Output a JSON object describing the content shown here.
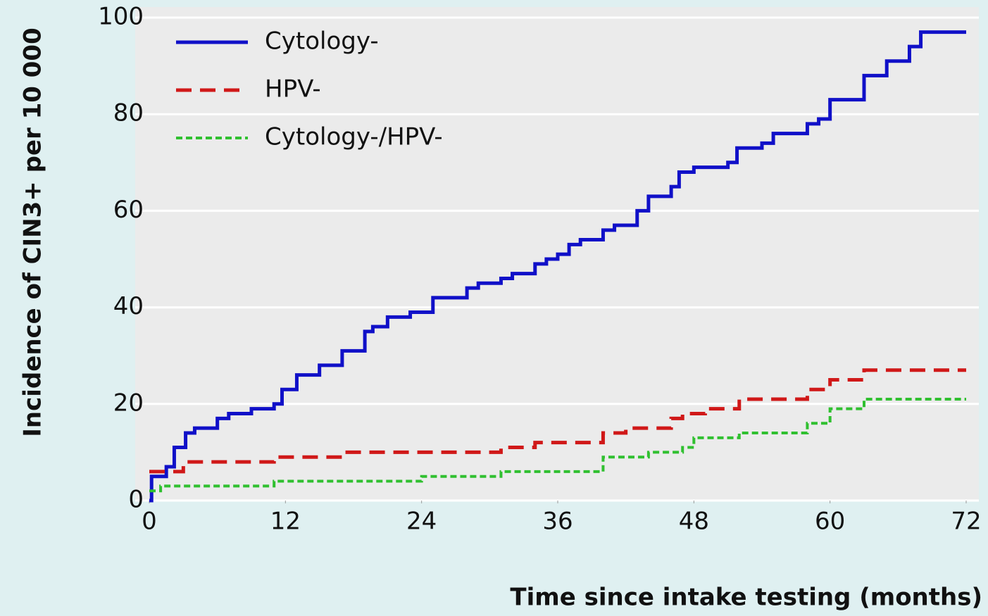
{
  "chart_data": {
    "type": "line",
    "step": "post",
    "xlabel": "Time since intake testing (months)",
    "ylabel": "Incidence of CIN3+ per 10 000",
    "xlim": [
      0,
      72
    ],
    "xticks": [
      0,
      12,
      24,
      36,
      48,
      60,
      72
    ],
    "ylim": [
      0,
      100
    ],
    "yticks": [
      0,
      20,
      40,
      60,
      80,
      100
    ],
    "grid": true,
    "legend": "upper left",
    "series": [
      {
        "name": "Cytology-",
        "color": "#1010c8",
        "dash": "solid",
        "x": [
          0,
          0.2,
          1.5,
          2.2,
          3.2,
          4,
          6,
          7,
          9,
          11,
          11.7,
          13,
          15,
          17,
          19,
          19.7,
          21,
          23,
          25,
          28,
          29,
          31,
          32,
          34,
          35,
          36,
          37,
          38,
          40,
          41,
          43,
          44,
          46,
          46.7,
          48,
          51,
          51.8,
          54,
          55,
          58,
          59,
          60,
          63,
          65,
          67,
          68,
          72
        ],
        "values": [
          0,
          5,
          7,
          11,
          14,
          15,
          17,
          18,
          19,
          20,
          23,
          26,
          28,
          31,
          35,
          36,
          38,
          39,
          42,
          44,
          45,
          46,
          47,
          49,
          50,
          51,
          53,
          54,
          56,
          57,
          60,
          63,
          65,
          68,
          69,
          70,
          73,
          74,
          76,
          78,
          79,
          83,
          88,
          91,
          94,
          97,
          97
        ]
      },
      {
        "name": "HPV-",
        "color": "#d01818",
        "dash": "long",
        "x": [
          0,
          3,
          11,
          17,
          31,
          34,
          40,
          42,
          46,
          47,
          49,
          52,
          58,
          60,
          63,
          72
        ],
        "values": [
          6,
          8,
          9,
          10,
          11,
          12,
          14,
          15,
          17,
          18,
          19,
          21,
          23,
          25,
          27,
          27
        ]
      },
      {
        "name": "Cytology-/HPV-",
        "color": "#30c030",
        "dash": "short",
        "x": [
          0,
          1,
          11,
          24,
          31,
          40,
          44,
          47,
          48,
          52,
          58,
          60,
          63,
          72
        ],
        "values": [
          2,
          3,
          4,
          5,
          6,
          9,
          10,
          11,
          13,
          14,
          16,
          19,
          21,
          21
        ]
      }
    ]
  }
}
